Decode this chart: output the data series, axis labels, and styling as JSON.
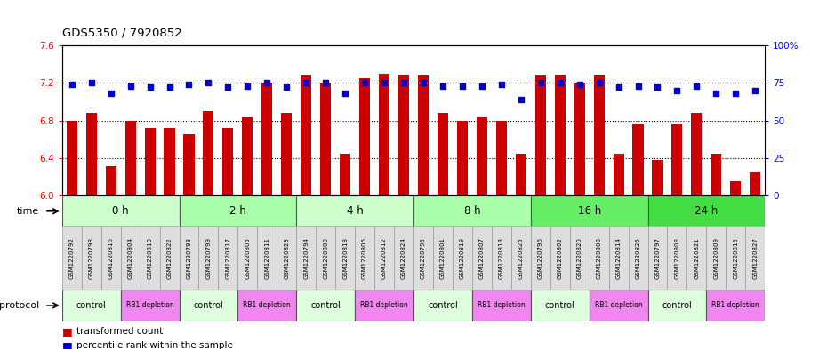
{
  "title": "GDS5350 / 7920852",
  "samples": [
    "GSM1220792",
    "GSM1220798",
    "GSM1220816",
    "GSM1220804",
    "GSM1220810",
    "GSM1220822",
    "GSM1220793",
    "GSM1220799",
    "GSM1220817",
    "GSM1220805",
    "GSM1220811",
    "GSM1220823",
    "GSM1220794",
    "GSM1220800",
    "GSM1220818",
    "GSM1220806",
    "GSM1220812",
    "GSM1220824",
    "GSM1220795",
    "GSM1220801",
    "GSM1220819",
    "GSM1220807",
    "GSM1220813",
    "GSM1220825",
    "GSM1220796",
    "GSM1220802",
    "GSM1220820",
    "GSM1220808",
    "GSM1220814",
    "GSM1220826",
    "GSM1220797",
    "GSM1220803",
    "GSM1220821",
    "GSM1220809",
    "GSM1220815",
    "GSM1220827"
  ],
  "bar_values": [
    6.8,
    6.88,
    6.31,
    6.8,
    6.72,
    6.72,
    6.65,
    6.9,
    6.72,
    6.83,
    7.2,
    6.88,
    7.28,
    7.2,
    6.45,
    7.25,
    7.3,
    7.28,
    7.28,
    6.88,
    6.8,
    6.83,
    6.8,
    6.45,
    7.28,
    7.28,
    7.2,
    7.28,
    6.45,
    6.76,
    6.38,
    6.76,
    6.88,
    6.45,
    6.15,
    6.25
  ],
  "percentile_values": [
    74,
    75,
    68,
    73,
    72,
    72,
    74,
    75,
    72,
    73,
    75,
    72,
    75,
    75,
    68,
    75,
    75,
    75,
    75,
    73,
    73,
    73,
    74,
    64,
    75,
    75,
    74,
    75,
    72,
    73,
    72,
    70,
    73,
    68,
    68,
    70
  ],
  "time_groups": [
    {
      "label": "0 h",
      "start": 0,
      "end": 6,
      "color": "#ccffcc"
    },
    {
      "label": "2 h",
      "start": 6,
      "end": 12,
      "color": "#aaffaa"
    },
    {
      "label": "4 h",
      "start": 12,
      "end": 18,
      "color": "#ccffcc"
    },
    {
      "label": "8 h",
      "start": 18,
      "end": 24,
      "color": "#aaffaa"
    },
    {
      "label": "16 h",
      "start": 24,
      "end": 30,
      "color": "#66ee66"
    },
    {
      "label": "24 h",
      "start": 30,
      "end": 36,
      "color": "#44dd44"
    }
  ],
  "protocol_groups": [
    {
      "label": "control",
      "start": 0,
      "end": 3,
      "color": "#ddffdd"
    },
    {
      "label": "RB1 depletion",
      "start": 3,
      "end": 6,
      "color": "#ee88ee"
    },
    {
      "label": "control",
      "start": 6,
      "end": 9,
      "color": "#ddffdd"
    },
    {
      "label": "RB1 depletion",
      "start": 9,
      "end": 12,
      "color": "#ee88ee"
    },
    {
      "label": "control",
      "start": 12,
      "end": 15,
      "color": "#ddffdd"
    },
    {
      "label": "RB1 depletion",
      "start": 15,
      "end": 18,
      "color": "#ee88ee"
    },
    {
      "label": "control",
      "start": 18,
      "end": 21,
      "color": "#ddffdd"
    },
    {
      "label": "RB1 depletion",
      "start": 21,
      "end": 24,
      "color": "#ee88ee"
    },
    {
      "label": "control",
      "start": 24,
      "end": 27,
      "color": "#ddffdd"
    },
    {
      "label": "RB1 depletion",
      "start": 27,
      "end": 30,
      "color": "#ee88ee"
    },
    {
      "label": "control",
      "start": 30,
      "end": 33,
      "color": "#ddffdd"
    },
    {
      "label": "RB1 depletion",
      "start": 33,
      "end": 36,
      "color": "#ee88ee"
    }
  ],
  "bar_color": "#cc0000",
  "percentile_color": "#0000cc",
  "ylim_left": [
    6.0,
    7.6
  ],
  "ylim_right": [
    0,
    100
  ],
  "yticks_left": [
    6.0,
    6.4,
    6.8,
    7.2,
    7.6
  ],
  "yticks_right": [
    0,
    25,
    50,
    75,
    100
  ],
  "legend_red_label": "transformed count",
  "legend_blue_label": "percentile rank within the sample"
}
